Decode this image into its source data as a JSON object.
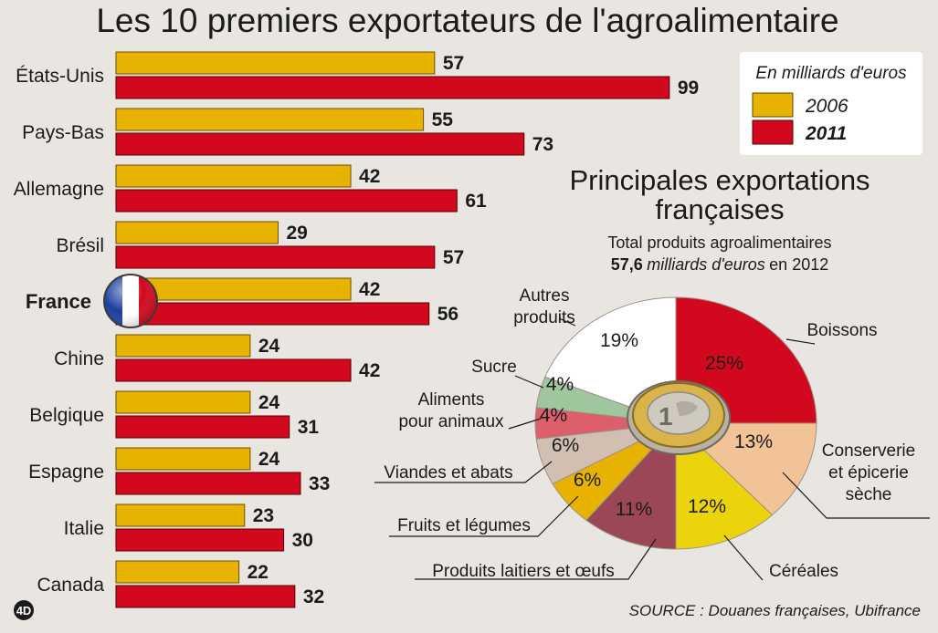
{
  "colors": {
    "background": "#e9e5e1",
    "bar_2006": "#e7b200",
    "bar_2011": "#d2091e",
    "legend_box": "#ffffff"
  },
  "chart_data": [
    {
      "type": "bar",
      "orientation": "horizontal",
      "title": "Les 10 premiers exportateurs de l'agroalimentaire",
      "categories": [
        "États-Unis",
        "Pays-Bas",
        "Allemagne",
        "Brésil",
        "France",
        "Chine",
        "Belgique",
        "Espagne",
        "Italie",
        "Canada"
      ],
      "highlight_category": "France",
      "series": [
        {
          "name": "2006",
          "values": [
            57,
            55,
            42,
            29,
            42,
            24,
            24,
            24,
            23,
            22
          ]
        },
        {
          "name": "2011",
          "values": [
            99,
            73,
            61,
            57,
            56,
            42,
            31,
            33,
            30,
            32
          ]
        }
      ],
      "legend": {
        "title": "En milliards d'euros",
        "position": "top-right",
        "entries": [
          "2006",
          "2011"
        ]
      },
      "xlim": [
        0,
        100
      ],
      "grid": false
    },
    {
      "type": "pie",
      "title": "Principales exportations françaises",
      "subtitle_line1": "Total produits agroalimentaires",
      "subtitle_bold": "57,6",
      "subtitle_italic": "milliards d'euros",
      "subtitle_end": "en 2012",
      "slices": [
        {
          "label": "Boissons",
          "value": 25,
          "text": "25%",
          "color": "#d2091e"
        },
        {
          "label_lines": [
            "Conserverie",
            "et épicerie",
            "sèche"
          ],
          "value": 13,
          "text": "13%",
          "color": "#f2c397"
        },
        {
          "label": "Céréales",
          "value": 12,
          "text": "12%",
          "color": "#ecd40c"
        },
        {
          "label": "Produits laitiers et œufs",
          "value": 11,
          "text": "11%",
          "color": "#9c4756"
        },
        {
          "label": "Fruits et légumes",
          "value": 6,
          "text": "6%",
          "color": "#e7b200"
        },
        {
          "label": "Viandes et abats",
          "value": 6,
          "text": "6%",
          "color": "#d1c0b2"
        },
        {
          "label_lines": [
            "Aliments",
            "pour animaux"
          ],
          "value": 4,
          "text": "4%",
          "color": "#dc5f6b"
        },
        {
          "label": "Sucre",
          "value": 4,
          "text": "4%",
          "color": "#9fc69c"
        },
        {
          "label_lines": [
            "Autres",
            "produits"
          ],
          "value": 19,
          "text": "19%",
          "color": "#ffffff"
        }
      ]
    }
  ],
  "source": "SOURCE : Douanes françaises, Ubifrance",
  "logo": "4D"
}
